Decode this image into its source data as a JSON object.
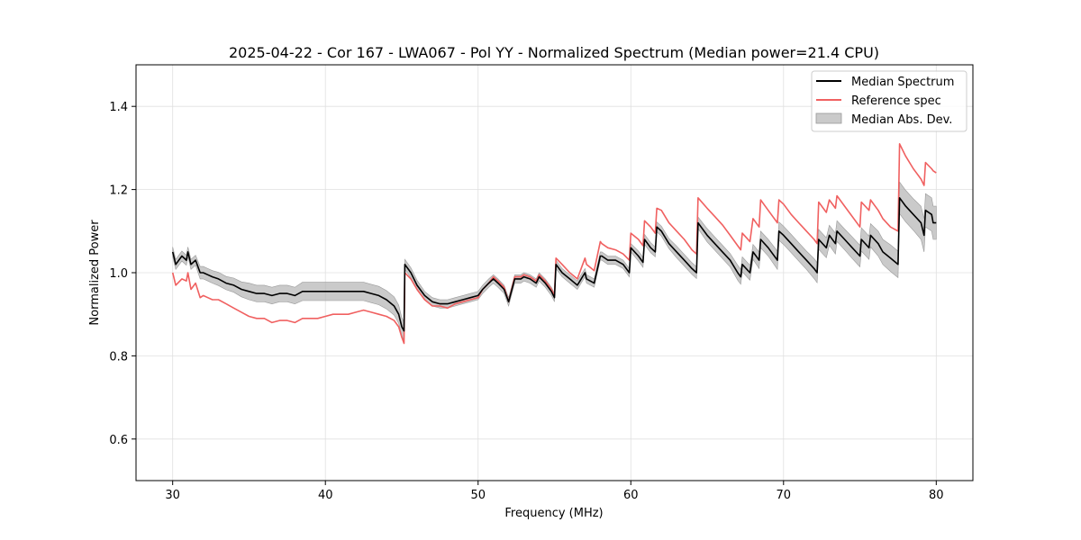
{
  "chart_data": {
    "type": "line",
    "title": "2025-04-22 - Cor 167 - LWA067 - Pol YY - Normalized Spectrum (Median power=21.4 CPU)",
    "xlabel": "Frequency (MHz)",
    "ylabel": "Normalized Power",
    "xlim": [
      27.6,
      82.4
    ],
    "ylim": [
      0.5,
      1.5
    ],
    "xticks": [
      30,
      40,
      50,
      60,
      70,
      80
    ],
    "yticks": [
      0.6,
      0.8,
      1.0,
      1.2,
      1.4
    ],
    "xtick_labels": [
      "30",
      "40",
      "50",
      "60",
      "70",
      "80"
    ],
    "ytick_labels": [
      "0.6",
      "0.8",
      "1.0",
      "1.2",
      "1.4"
    ],
    "grid": true,
    "legend_position": "top-right",
    "legend": [
      "Median Spectrum",
      "Reference spec",
      "Median Abs. Dev."
    ],
    "colors": {
      "median": "#000000",
      "reference": "#f06060",
      "band_fill": "#b3b3b3",
      "grid": "#e0e0e0"
    },
    "series": [
      {
        "name": "Median Spectrum",
        "x": [
          30.0,
          30.2,
          30.6,
          30.9,
          31.0,
          31.2,
          31.5,
          31.8,
          32.0,
          32.3,
          32.6,
          33.0,
          33.5,
          34.0,
          34.5,
          35.0,
          35.5,
          36.0,
          36.5,
          37.0,
          37.5,
          38.0,
          38.5,
          39.0,
          39.5,
          40.0,
          40.5,
          41.0,
          41.5,
          42.0,
          42.5,
          43.0,
          43.5,
          44.0,
          44.5,
          44.8,
          45.0,
          45.15,
          45.2,
          45.6,
          46.0,
          46.5,
          47.0,
          47.5,
          48.0,
          48.5,
          49.0,
          49.5,
          50.0,
          50.3,
          50.7,
          51.0,
          51.3,
          51.7,
          52.0,
          52.4,
          52.8,
          53.0,
          53.4,
          53.8,
          54.0,
          54.4,
          54.8,
          55.0,
          55.1,
          55.5,
          56.0,
          56.5,
          57.0,
          57.1,
          57.6,
          58.0,
          58.1,
          58.5,
          59.0,
          59.5,
          59.9,
          60.0,
          60.5,
          60.8,
          60.9,
          61.3,
          61.6,
          61.7,
          62.0,
          62.5,
          63.0,
          63.5,
          64.0,
          64.3,
          64.4,
          65.0,
          65.5,
          66.0,
          66.5,
          67.0,
          67.2,
          67.3,
          67.8,
          68.0,
          68.4,
          68.5,
          69.0,
          69.6,
          69.7,
          70.0,
          70.5,
          71.0,
          71.5,
          72.0,
          72.2,
          72.3,
          72.8,
          73.0,
          73.4,
          73.5,
          74.0,
          74.5,
          75.0,
          75.1,
          75.6,
          75.7,
          76.2,
          76.5,
          77.0,
          77.5,
          77.6,
          78.0,
          78.5,
          79.0,
          79.2,
          79.3,
          79.7,
          79.8,
          80.0
        ],
        "values": [
          1.05,
          1.02,
          1.04,
          1.03,
          1.05,
          1.02,
          1.03,
          1.0,
          1.0,
          0.995,
          0.99,
          0.985,
          0.975,
          0.97,
          0.96,
          0.955,
          0.95,
          0.95,
          0.945,
          0.95,
          0.95,
          0.945,
          0.955,
          0.955,
          0.955,
          0.955,
          0.955,
          0.955,
          0.955,
          0.955,
          0.955,
          0.95,
          0.945,
          0.935,
          0.92,
          0.9,
          0.87,
          0.86,
          1.02,
          1.0,
          0.97,
          0.945,
          0.93,
          0.925,
          0.925,
          0.93,
          0.935,
          0.94,
          0.945,
          0.96,
          0.975,
          0.985,
          0.975,
          0.96,
          0.93,
          0.985,
          0.985,
          0.99,
          0.985,
          0.975,
          0.99,
          0.975,
          0.955,
          0.94,
          1.02,
          1.0,
          0.985,
          0.97,
          1.0,
          0.985,
          0.975,
          1.04,
          1.04,
          1.03,
          1.03,
          1.02,
          1.0,
          1.06,
          1.04,
          1.025,
          1.08,
          1.06,
          1.05,
          1.11,
          1.1,
          1.07,
          1.05,
          1.03,
          1.01,
          1.0,
          1.12,
          1.09,
          1.07,
          1.05,
          1.03,
          1.0,
          0.99,
          1.02,
          1.0,
          1.05,
          1.03,
          1.08,
          1.06,
          1.03,
          1.1,
          1.09,
          1.07,
          1.05,
          1.03,
          1.01,
          1.0,
          1.08,
          1.06,
          1.09,
          1.07,
          1.1,
          1.08,
          1.06,
          1.04,
          1.08,
          1.06,
          1.09,
          1.07,
          1.05,
          1.035,
          1.02,
          1.18,
          1.16,
          1.14,
          1.12,
          1.09,
          1.15,
          1.14,
          1.12,
          1.12
        ]
      },
      {
        "name": "Reference spec",
        "x": [
          30.0,
          30.2,
          30.6,
          30.9,
          31.0,
          31.2,
          31.5,
          31.8,
          32.0,
          32.3,
          32.6,
          33.0,
          33.5,
          34.0,
          34.5,
          35.0,
          35.5,
          36.0,
          36.5,
          37.0,
          37.5,
          38.0,
          38.5,
          39.0,
          39.5,
          40.0,
          40.5,
          41.0,
          41.5,
          42.0,
          42.5,
          43.0,
          43.5,
          44.0,
          44.5,
          44.8,
          45.0,
          45.15,
          45.2,
          45.6,
          46.0,
          46.5,
          47.0,
          47.5,
          48.0,
          48.5,
          49.0,
          49.5,
          50.0,
          50.3,
          50.7,
          51.0,
          51.3,
          51.7,
          52.0,
          52.4,
          52.8,
          53.0,
          53.4,
          53.8,
          54.0,
          54.4,
          54.8,
          55.0,
          55.1,
          55.5,
          56.0,
          56.5,
          57.0,
          57.1,
          57.6,
          58.0,
          58.1,
          58.5,
          59.0,
          59.5,
          59.9,
          60.0,
          60.5,
          60.8,
          60.9,
          61.3,
          61.6,
          61.7,
          62.0,
          62.5,
          63.0,
          63.5,
          64.0,
          64.3,
          64.4,
          65.0,
          65.5,
          66.0,
          66.5,
          67.0,
          67.2,
          67.3,
          67.8,
          68.0,
          68.4,
          68.5,
          69.0,
          69.6,
          69.7,
          70.0,
          70.5,
          71.0,
          71.5,
          72.0,
          72.2,
          72.3,
          72.8,
          73.0,
          73.4,
          73.5,
          74.0,
          74.5,
          75.0,
          75.1,
          75.6,
          75.7,
          76.2,
          76.5,
          77.0,
          77.5,
          77.6,
          78.0,
          78.5,
          79.0,
          79.2,
          79.3,
          79.7,
          79.8,
          80.0
        ],
        "values": [
          1.0,
          0.97,
          0.985,
          0.98,
          1.0,
          0.96,
          0.975,
          0.94,
          0.945,
          0.94,
          0.935,
          0.935,
          0.925,
          0.915,
          0.905,
          0.895,
          0.89,
          0.89,
          0.88,
          0.885,
          0.885,
          0.88,
          0.89,
          0.89,
          0.89,
          0.895,
          0.9,
          0.9,
          0.9,
          0.905,
          0.91,
          0.905,
          0.9,
          0.895,
          0.885,
          0.87,
          0.845,
          0.83,
          1.0,
          0.985,
          0.96,
          0.935,
          0.92,
          0.92,
          0.915,
          0.925,
          0.93,
          0.935,
          0.94,
          0.96,
          0.975,
          0.99,
          0.98,
          0.965,
          0.93,
          0.99,
          0.99,
          0.995,
          0.99,
          0.98,
          0.995,
          0.98,
          0.96,
          0.945,
          1.035,
          1.02,
          1.0,
          0.985,
          1.035,
          1.02,
          1.005,
          1.075,
          1.07,
          1.06,
          1.055,
          1.045,
          1.03,
          1.095,
          1.08,
          1.065,
          1.125,
          1.11,
          1.095,
          1.155,
          1.15,
          1.12,
          1.1,
          1.08,
          1.055,
          1.045,
          1.18,
          1.155,
          1.135,
          1.115,
          1.09,
          1.065,
          1.055,
          1.095,
          1.075,
          1.13,
          1.11,
          1.175,
          1.15,
          1.12,
          1.175,
          1.165,
          1.14,
          1.12,
          1.1,
          1.08,
          1.07,
          1.17,
          1.145,
          1.175,
          1.155,
          1.185,
          1.16,
          1.135,
          1.11,
          1.17,
          1.15,
          1.175,
          1.15,
          1.13,
          1.11,
          1.1,
          1.31,
          1.28,
          1.25,
          1.225,
          1.21,
          1.265,
          1.25,
          1.245,
          1.24
        ]
      }
    ],
    "band": {
      "name": "Median Abs. Dev.",
      "upper_offset": [
        0.012,
        0.012,
        0.012,
        0.012,
        0.012,
        0.012,
        0.012,
        0.015,
        0.015,
        0.015,
        0.015,
        0.016,
        0.016,
        0.017,
        0.018,
        0.02,
        0.02,
        0.02,
        0.02,
        0.02,
        0.02,
        0.02,
        0.022,
        0.022,
        0.022,
        0.022,
        0.022,
        0.022,
        0.022,
        0.022,
        0.022,
        0.022,
        0.022,
        0.022,
        0.022,
        0.022,
        0.022,
        0.022,
        0.012,
        0.012,
        0.012,
        0.01,
        0.01,
        0.01,
        0.01,
        0.01,
        0.01,
        0.01,
        0.01,
        0.01,
        0.01,
        0.01,
        0.01,
        0.01,
        0.01,
        0.01,
        0.01,
        0.01,
        0.01,
        0.01,
        0.01,
        0.01,
        0.01,
        0.01,
        0.01,
        0.01,
        0.01,
        0.01,
        0.01,
        0.01,
        0.01,
        0.01,
        0.01,
        0.01,
        0.01,
        0.01,
        0.01,
        0.01,
        0.012,
        0.012,
        0.012,
        0.012,
        0.012,
        0.012,
        0.012,
        0.012,
        0.014,
        0.014,
        0.014,
        0.014,
        0.014,
        0.016,
        0.016,
        0.016,
        0.016,
        0.018,
        0.018,
        0.018,
        0.018,
        0.018,
        0.02,
        0.02,
        0.02,
        0.022,
        0.022,
        0.022,
        0.022,
        0.022,
        0.022,
        0.024,
        0.024,
        0.024,
        0.024,
        0.024,
        0.025,
        0.025,
        0.025,
        0.026,
        0.026,
        0.028,
        0.028,
        0.028,
        0.03,
        0.03,
        0.032,
        0.032,
        0.038,
        0.038,
        0.038,
        0.04,
        0.04,
        0.04,
        0.04,
        0.04,
        0.04
      ]
    }
  }
}
